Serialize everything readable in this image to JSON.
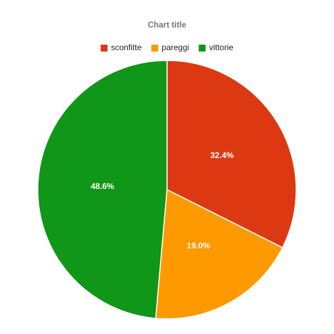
{
  "chart_data": {
    "type": "pie",
    "title": "Chart title",
    "categories": [
      "sconfitte",
      "pareggi",
      "vittorie"
    ],
    "values": [
      32.4,
      19.0,
      48.6
    ],
    "value_labels": [
      "32.4%",
      "19.0%",
      "48.6%"
    ],
    "colors": [
      "#dc3912",
      "#ff9900",
      "#109618"
    ]
  }
}
